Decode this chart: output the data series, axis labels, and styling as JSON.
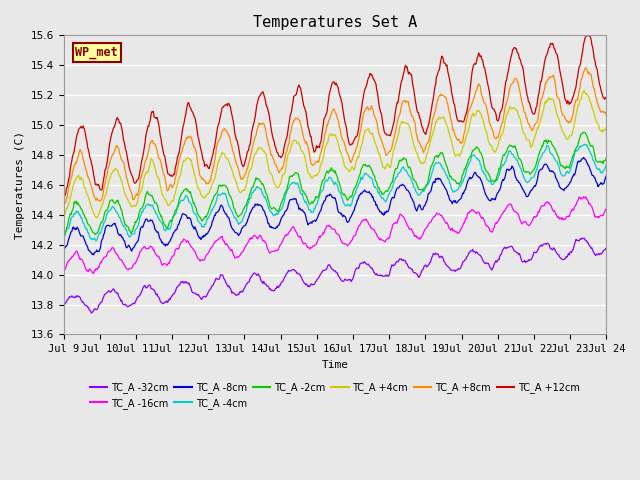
{
  "title": "Temperatures Set A",
  "xlabel": "Time",
  "ylabel": "Temperatures (C)",
  "ylim": [
    13.6,
    15.6
  ],
  "xlim": [
    0,
    360
  ],
  "x_tick_labels": [
    "Jul 9",
    "Jul 10",
    "Jul 11",
    "Jul 12",
    "Jul 13",
    "Jul 14",
    "Jul 15",
    "Jul 16",
    "Jul 17",
    "Jul 18",
    "Jul 19",
    "Jul 20",
    "Jul 21",
    "Jul 22",
    "Jul 23",
    "Jul 24"
  ],
  "x_tick_positions": [
    0,
    24,
    48,
    72,
    96,
    120,
    144,
    168,
    192,
    216,
    240,
    264,
    288,
    312,
    336,
    360
  ],
  "yticks": [
    13.6,
    13.8,
    14.0,
    14.2,
    14.4,
    14.6,
    14.8,
    15.0,
    15.2,
    15.4,
    15.6
  ],
  "annotation_text": "WP_met",
  "annotation_bg": "#ffffa0",
  "annotation_border": "#8b0000",
  "series": [
    {
      "label": "TC_A -32cm",
      "color": "#8b00ff",
      "base": 13.8,
      "trend": 0.00111,
      "amp": 0.06,
      "phase": 1.2,
      "noise_scale": 0.018
    },
    {
      "label": "TC_A -16cm",
      "color": "#ff00ff",
      "base": 14.06,
      "trend": 0.00111,
      "amp": 0.07,
      "phase": 1.1,
      "noise_scale": 0.02
    },
    {
      "label": "TC_A -8cm",
      "color": "#0000dd",
      "base": 14.2,
      "trend": 0.00139,
      "amp": 0.09,
      "phase": 1.0,
      "noise_scale": 0.022
    },
    {
      "label": "TC_A -4cm",
      "color": "#00cccc",
      "base": 14.3,
      "trend": 0.00139,
      "amp": 0.1,
      "phase": 0.9,
      "noise_scale": 0.022
    },
    {
      "label": "TC_A -2cm",
      "color": "#00cc00",
      "base": 14.35,
      "trend": 0.00139,
      "amp": 0.11,
      "phase": 0.8,
      "noise_scale": 0.022
    },
    {
      "label": "TC_A +4cm",
      "color": "#cccc00",
      "base": 14.5,
      "trend": 0.00167,
      "amp": 0.14,
      "phase": 0.5,
      "noise_scale": 0.025
    },
    {
      "label": "TC_A +8cm",
      "color": "#ff8800",
      "base": 14.62,
      "trend": 0.00167,
      "amp": 0.17,
      "phase": 0.3,
      "noise_scale": 0.028
    },
    {
      "label": "TC_A +12cm",
      "color": "#cc0000",
      "base": 14.75,
      "trend": 0.00181,
      "amp": 0.22,
      "phase": 0.1,
      "noise_scale": 0.03
    }
  ],
  "bg_color": "#e8e8e8",
  "plot_bg": "#e8e8e8",
  "grid_color": "#ffffff",
  "n_points": 720,
  "legend_ncol": 6
}
